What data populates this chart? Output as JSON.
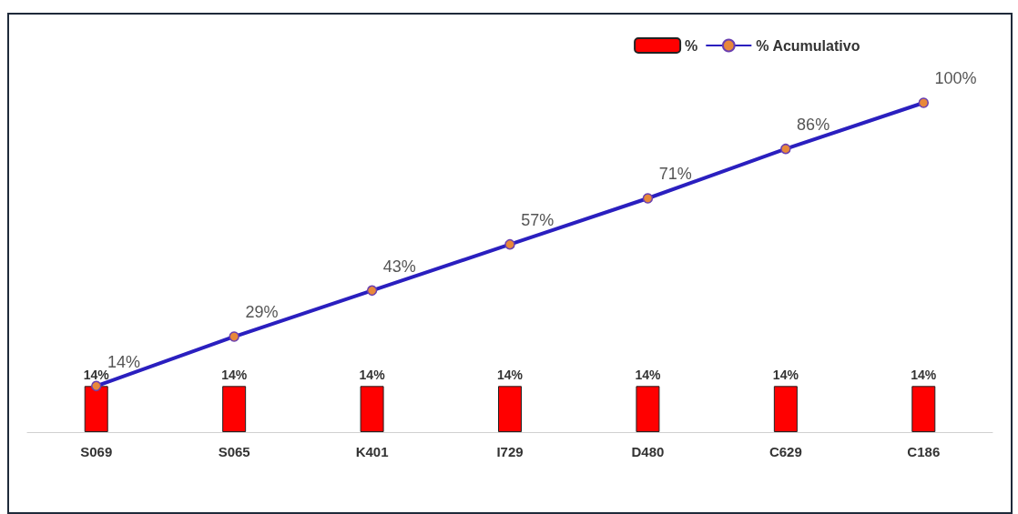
{
  "chart_data": {
    "type": "bar",
    "categories": [
      "S069",
      "S065",
      "K401",
      "I729",
      "D480",
      "C629",
      "C186"
    ],
    "series": [
      {
        "name": "%",
        "color": "#ff0000",
        "values": [
          14,
          14,
          14,
          14,
          14,
          14,
          14
        ],
        "value_labels": [
          "14%",
          "14%",
          "14%",
          "14%",
          "14%",
          "14%",
          "14%"
        ]
      },
      {
        "name": "% Acumulativo",
        "type": "line",
        "color": "#2a1fbf",
        "marker": "circle",
        "values": [
          14,
          29,
          43,
          57,
          71,
          86,
          100
        ],
        "value_labels": [
          "14%",
          "29%",
          "43%",
          "57%",
          "71%",
          "86%",
          "100%"
        ]
      }
    ],
    "legend": "top right",
    "grid": false
  }
}
